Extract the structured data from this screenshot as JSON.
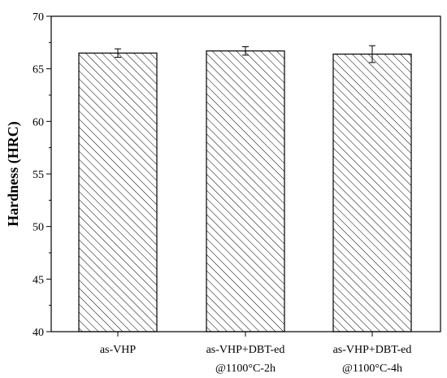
{
  "chart_data": {
    "type": "bar",
    "title": "",
    "xlabel": "",
    "ylabel": "Hardness (HRC)",
    "ylim": [
      40,
      70
    ],
    "yticks": [
      40,
      45,
      50,
      55,
      60,
      65,
      70
    ],
    "grid": false,
    "legend": "none",
    "bar_fill": "hatched-diagonal",
    "colors": {
      "bar_stroke": "#000000",
      "hatch": "#000000",
      "background": "#ffffff"
    },
    "categories": [
      [
        "as-VHP"
      ],
      [
        "as-VHP+DBT-ed",
        "@1100°C-2h"
      ],
      [
        "as-VHP+DBT-ed",
        "@1100°C-4h"
      ]
    ],
    "values": [
      66.5,
      66.7,
      66.4
    ],
    "errors": [
      0.4,
      0.4,
      0.8
    ]
  }
}
